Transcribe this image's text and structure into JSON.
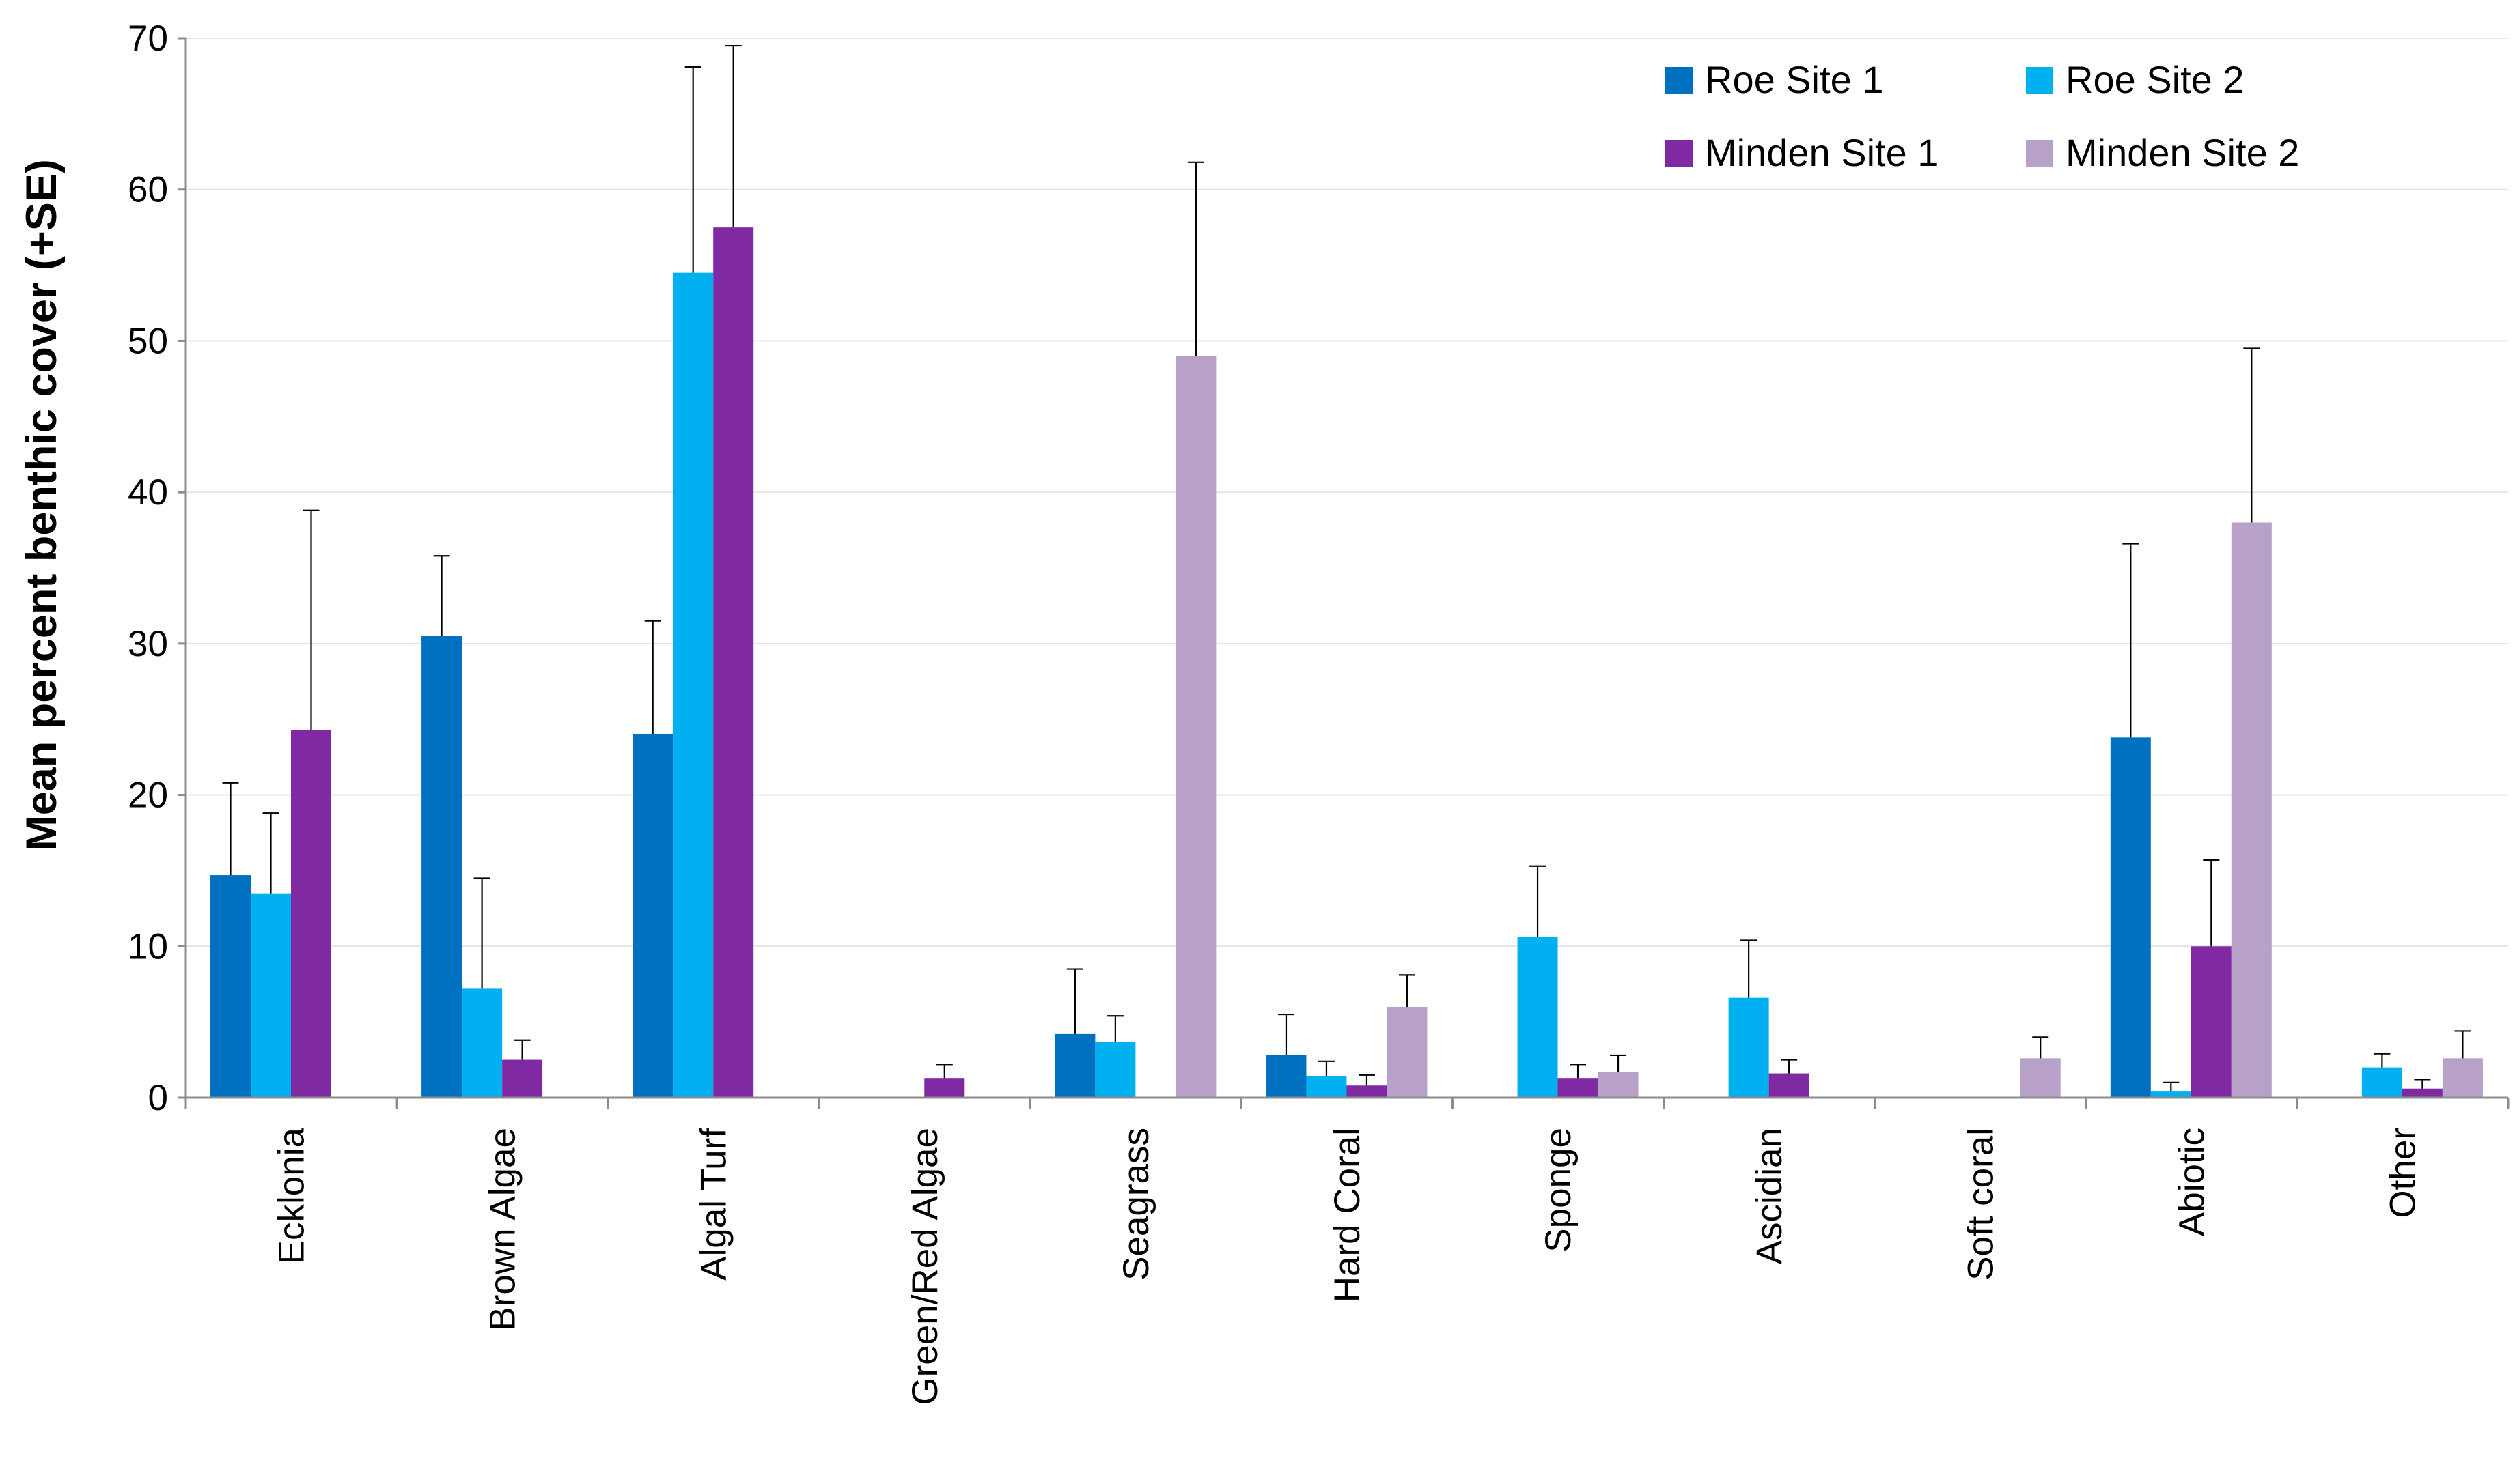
{
  "chart_data": {
    "type": "bar",
    "title": "",
    "xlabel": "",
    "ylabel": "Mean percent benthic cover (+SE)",
    "ylim": [
      0,
      70
    ],
    "yticks": [
      0,
      10,
      20,
      30,
      40,
      50,
      60,
      70
    ],
    "grid": true,
    "legend_position": "top-right",
    "categories": [
      "Ecklonia",
      "Brown Algae",
      "Algal Turf",
      "Green/Red Algae",
      "Seagrass",
      "Hard Coral",
      "Sponge",
      "Ascidian",
      "Soft coral",
      "Abiotic",
      "Other"
    ],
    "series": [
      {
        "name": "Roe Site 1",
        "color": "#0070c0",
        "values": [
          14.7,
          30.5,
          24.0,
          0,
          4.2,
          2.8,
          0,
          0,
          0,
          23.8,
          0
        ],
        "se": [
          6.1,
          5.3,
          7.5,
          0,
          4.3,
          2.7,
          0,
          0,
          0,
          12.8,
          0
        ]
      },
      {
        "name": "Roe Site 2",
        "color": "#00b0f0",
        "values": [
          13.5,
          7.2,
          54.5,
          0,
          3.7,
          1.4,
          10.6,
          6.6,
          0,
          0.4,
          2.0
        ],
        "se": [
          5.3,
          7.3,
          13.6,
          0,
          1.7,
          1.0,
          4.7,
          3.8,
          0,
          0.6,
          0.9
        ]
      },
      {
        "name": "Minden Site 1",
        "color": "#7f2aa2",
        "values": [
          24.3,
          2.5,
          57.5,
          1.3,
          0,
          0.8,
          1.3,
          1.6,
          0,
          10.0,
          0.6
        ],
        "se": [
          14.5,
          1.3,
          12.0,
          0.9,
          0,
          0.7,
          0.9,
          0.9,
          0,
          5.7,
          0.6
        ]
      },
      {
        "name": "Minden Site 2",
        "color": "#b8a1c9",
        "values": [
          0,
          0,
          0,
          0,
          49.0,
          6.0,
          1.7,
          0,
          2.6,
          38.0,
          2.6
        ],
        "se": [
          0,
          0,
          0,
          0,
          12.8,
          2.1,
          1.1,
          0,
          1.4,
          11.5,
          1.8
        ]
      }
    ]
  }
}
